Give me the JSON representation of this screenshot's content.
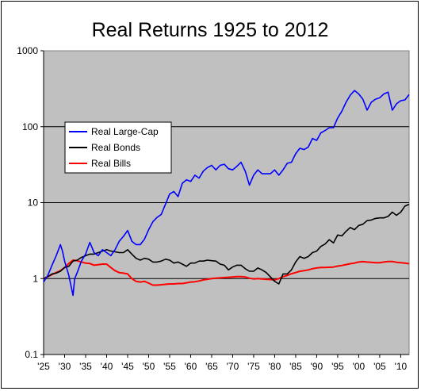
{
  "chart_data": {
    "type": "line",
    "title": "Real Returns 1925 to 2012",
    "xlabel": "",
    "ylabel": "",
    "y_scale": "log",
    "ylim": [
      0.1,
      1000
    ],
    "xlim": [
      1925,
      2012
    ],
    "y_ticks": [
      "0.1",
      "1",
      "10",
      "100",
      "1000"
    ],
    "x_ticks": [
      "'25",
      "'30",
      "'35",
      "'40",
      "'45",
      "'50",
      "'55",
      "'60",
      "'65",
      "'70",
      "'75",
      "'80",
      "'85",
      "'90",
      "'95",
      "'00",
      "'05",
      "'10"
    ],
    "grid": "horizontal",
    "background": "#c0c0c0",
    "legend_position": "upper-left",
    "series": [
      {
        "name": "Real Large-Cap",
        "color": "#0000ff",
        "points": [
          [
            1925,
            0.9
          ],
          [
            1926,
            1.1
          ],
          [
            1927,
            1.5
          ],
          [
            1928,
            2.0
          ],
          [
            1929,
            2.8
          ],
          [
            1929.5,
            2.3
          ],
          [
            1930,
            1.7
          ],
          [
            1931,
            1.1
          ],
          [
            1932,
            0.6
          ],
          [
            1932.4,
            1.0
          ],
          [
            1933,
            1.2
          ],
          [
            1934,
            1.7
          ],
          [
            1935,
            2.1
          ],
          [
            1936,
            3.0
          ],
          [
            1936.6,
            2.5
          ],
          [
            1937,
            2.2
          ],
          [
            1938,
            2.0
          ],
          [
            1939,
            2.4
          ],
          [
            1940,
            2.2
          ],
          [
            1941,
            2.0
          ],
          [
            1942,
            2.4
          ],
          [
            1943,
            3.1
          ],
          [
            1944,
            3.6
          ],
          [
            1945,
            4.3
          ],
          [
            1946,
            3.1
          ],
          [
            1947,
            2.8
          ],
          [
            1948,
            2.8
          ],
          [
            1949,
            3.3
          ],
          [
            1950,
            4.4
          ],
          [
            1951,
            5.6
          ],
          [
            1952,
            6.4
          ],
          [
            1953,
            7.0
          ],
          [
            1954,
            9.5
          ],
          [
            1955,
            13
          ],
          [
            1956,
            14
          ],
          [
            1957,
            12
          ],
          [
            1958,
            18
          ],
          [
            1959,
            20
          ],
          [
            1960,
            19
          ],
          [
            1961,
            23
          ],
          [
            1962,
            21
          ],
          [
            1963,
            26
          ],
          [
            1964,
            29
          ],
          [
            1965,
            31
          ],
          [
            1966,
            27
          ],
          [
            1967,
            31
          ],
          [
            1968,
            32
          ],
          [
            1969,
            28
          ],
          [
            1970,
            27
          ],
          [
            1971,
            30
          ],
          [
            1972,
            34
          ],
          [
            1973,
            26
          ],
          [
            1974,
            17
          ],
          [
            1975,
            23
          ],
          [
            1976,
            27
          ],
          [
            1977,
            24
          ],
          [
            1978,
            24
          ],
          [
            1979,
            24
          ],
          [
            1980,
            27
          ],
          [
            1981,
            23
          ],
          [
            1982,
            27
          ],
          [
            1983,
            33
          ],
          [
            1984,
            34
          ],
          [
            1985,
            44
          ],
          [
            1986,
            52
          ],
          [
            1987,
            50
          ],
          [
            1988,
            54
          ],
          [
            1989,
            70
          ],
          [
            1990,
            66
          ],
          [
            1991,
            83
          ],
          [
            1992,
            89
          ],
          [
            1993,
            97
          ],
          [
            1994,
            97
          ],
          [
            1995,
            130
          ],
          [
            1996,
            160
          ],
          [
            1997,
            210
          ],
          [
            1998,
            260
          ],
          [
            1999,
            300
          ],
          [
            2000,
            270
          ],
          [
            2001,
            230
          ],
          [
            2002,
            165
          ],
          [
            2003,
            210
          ],
          [
            2004,
            230
          ],
          [
            2005,
            240
          ],
          [
            2006,
            270
          ],
          [
            2007,
            285
          ],
          [
            2008,
            165
          ],
          [
            2009,
            200
          ],
          [
            2010,
            220
          ],
          [
            2011,
            225
          ],
          [
            2012,
            265
          ]
        ]
      },
      {
        "name": "Real Bonds",
        "color": "#000000",
        "points": [
          [
            1925,
            1.0
          ],
          [
            1926,
            1.06
          ],
          [
            1927,
            1.15
          ],
          [
            1928,
            1.18
          ],
          [
            1929,
            1.25
          ],
          [
            1930,
            1.4
          ],
          [
            1931,
            1.45
          ],
          [
            1932,
            1.7
          ],
          [
            1933,
            1.75
          ],
          [
            1934,
            1.9
          ],
          [
            1935,
            2.0
          ],
          [
            1936,
            2.1
          ],
          [
            1937,
            2.1
          ],
          [
            1938,
            2.2
          ],
          [
            1939,
            2.3
          ],
          [
            1940,
            2.4
          ],
          [
            1941,
            2.3
          ],
          [
            1942,
            2.25
          ],
          [
            1943,
            2.2
          ],
          [
            1944,
            2.2
          ],
          [
            1945,
            2.4
          ],
          [
            1946,
            2.1
          ],
          [
            1947,
            1.85
          ],
          [
            1948,
            1.75
          ],
          [
            1949,
            1.85
          ],
          [
            1950,
            1.8
          ],
          [
            1951,
            1.65
          ],
          [
            1952,
            1.65
          ],
          [
            1953,
            1.7
          ],
          [
            1954,
            1.8
          ],
          [
            1955,
            1.75
          ],
          [
            1956,
            1.6
          ],
          [
            1957,
            1.65
          ],
          [
            1958,
            1.55
          ],
          [
            1959,
            1.45
          ],
          [
            1960,
            1.6
          ],
          [
            1961,
            1.6
          ],
          [
            1962,
            1.7
          ],
          [
            1963,
            1.7
          ],
          [
            1964,
            1.75
          ],
          [
            1965,
            1.72
          ],
          [
            1966,
            1.7
          ],
          [
            1967,
            1.55
          ],
          [
            1968,
            1.5
          ],
          [
            1969,
            1.3
          ],
          [
            1970,
            1.42
          ],
          [
            1971,
            1.5
          ],
          [
            1972,
            1.5
          ],
          [
            1973,
            1.35
          ],
          [
            1974,
            1.25
          ],
          [
            1975,
            1.25
          ],
          [
            1976,
            1.38
          ],
          [
            1977,
            1.3
          ],
          [
            1978,
            1.2
          ],
          [
            1979,
            1.05
          ],
          [
            1980,
            0.92
          ],
          [
            1981,
            0.85
          ],
          [
            1982,
            1.15
          ],
          [
            1983,
            1.15
          ],
          [
            1984,
            1.3
          ],
          [
            1985,
            1.65
          ],
          [
            1986,
            1.95
          ],
          [
            1987,
            1.85
          ],
          [
            1988,
            1.95
          ],
          [
            1989,
            2.2
          ],
          [
            1990,
            2.3
          ],
          [
            1991,
            2.65
          ],
          [
            1992,
            2.85
          ],
          [
            1993,
            3.25
          ],
          [
            1994,
            2.95
          ],
          [
            1995,
            3.75
          ],
          [
            1996,
            3.65
          ],
          [
            1997,
            4.2
          ],
          [
            1998,
            4.7
          ],
          [
            1999,
            4.4
          ],
          [
            2000,
            5.0
          ],
          [
            2001,
            5.2
          ],
          [
            2002,
            5.8
          ],
          [
            2003,
            5.9
          ],
          [
            2004,
            6.2
          ],
          [
            2005,
            6.3
          ],
          [
            2006,
            6.3
          ],
          [
            2007,
            6.6
          ],
          [
            2008,
            7.5
          ],
          [
            2009,
            6.8
          ],
          [
            2010,
            7.5
          ],
          [
            2011,
            9.0
          ],
          [
            2012,
            9.5
          ]
        ]
      },
      {
        "name": "Real Bills",
        "color": "#ff0000",
        "points": [
          [
            1925,
            1.0
          ],
          [
            1926,
            1.06
          ],
          [
            1927,
            1.13
          ],
          [
            1928,
            1.2
          ],
          [
            1929,
            1.27
          ],
          [
            1930,
            1.4
          ],
          [
            1931,
            1.58
          ],
          [
            1932,
            1.75
          ],
          [
            1933,
            1.72
          ],
          [
            1934,
            1.65
          ],
          [
            1935,
            1.6
          ],
          [
            1936,
            1.58
          ],
          [
            1937,
            1.5
          ],
          [
            1938,
            1.52
          ],
          [
            1939,
            1.55
          ],
          [
            1940,
            1.55
          ],
          [
            1941,
            1.4
          ],
          [
            1942,
            1.27
          ],
          [
            1943,
            1.2
          ],
          [
            1944,
            1.18
          ],
          [
            1945,
            1.15
          ],
          [
            1946,
            1.0
          ],
          [
            1947,
            0.92
          ],
          [
            1948,
            0.9
          ],
          [
            1949,
            0.92
          ],
          [
            1950,
            0.87
          ],
          [
            1951,
            0.82
          ],
          [
            1952,
            0.82
          ],
          [
            1953,
            0.83
          ],
          [
            1954,
            0.84
          ],
          [
            1955,
            0.85
          ],
          [
            1956,
            0.85
          ],
          [
            1957,
            0.86
          ],
          [
            1958,
            0.86
          ],
          [
            1959,
            0.88
          ],
          [
            1960,
            0.9
          ],
          [
            1961,
            0.91
          ],
          [
            1962,
            0.93
          ],
          [
            1963,
            0.96
          ],
          [
            1964,
            0.98
          ],
          [
            1965,
            1.0
          ],
          [
            1966,
            1.01
          ],
          [
            1967,
            1.02
          ],
          [
            1968,
            1.03
          ],
          [
            1969,
            1.04
          ],
          [
            1970,
            1.05
          ],
          [
            1971,
            1.06
          ],
          [
            1972,
            1.06
          ],
          [
            1973,
            1.05
          ],
          [
            1974,
            1.01
          ],
          [
            1975,
            0.99
          ],
          [
            1976,
            1.0
          ],
          [
            1977,
            0.99
          ],
          [
            1978,
            0.98
          ],
          [
            1979,
            0.97
          ],
          [
            1980,
            0.96
          ],
          [
            1981,
            1.0
          ],
          [
            1982,
            1.06
          ],
          [
            1983,
            1.1
          ],
          [
            1984,
            1.16
          ],
          [
            1985,
            1.2
          ],
          [
            1986,
            1.25
          ],
          [
            1987,
            1.27
          ],
          [
            1988,
            1.3
          ],
          [
            1989,
            1.35
          ],
          [
            1990,
            1.38
          ],
          [
            1991,
            1.4
          ],
          [
            1992,
            1.4
          ],
          [
            1993,
            1.41
          ],
          [
            1994,
            1.42
          ],
          [
            1995,
            1.46
          ],
          [
            1996,
            1.49
          ],
          [
            1997,
            1.53
          ],
          [
            1998,
            1.57
          ],
          [
            1999,
            1.6
          ],
          [
            2000,
            1.65
          ],
          [
            2001,
            1.67
          ],
          [
            2002,
            1.65
          ],
          [
            2003,
            1.64
          ],
          [
            2004,
            1.62
          ],
          [
            2005,
            1.62
          ],
          [
            2006,
            1.65
          ],
          [
            2007,
            1.68
          ],
          [
            2008,
            1.68
          ],
          [
            2009,
            1.64
          ],
          [
            2010,
            1.62
          ],
          [
            2011,
            1.6
          ],
          [
            2012,
            1.57
          ]
        ]
      }
    ]
  }
}
